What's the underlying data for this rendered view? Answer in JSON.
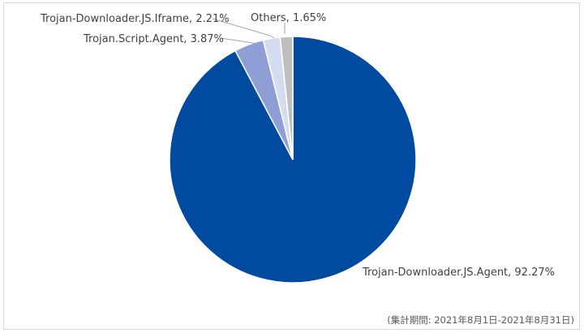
{
  "chart_data": {
    "type": "pie",
    "categories": [
      "Trojan-Downloader.JS.Agent",
      "Trojan.Script.Agent",
      "Trojan-Downloader.JS.Iframe",
      "Others"
    ],
    "values": [
      92.27,
      3.87,
      2.21,
      1.65
    ],
    "value_unit": "%",
    "colors": [
      "#004b9f",
      "#8e9fd6",
      "#d6dcf0",
      "#bfbfbf"
    ],
    "labels": [
      "Trojan-Downloader.JS.Agent, 92.27%",
      "Trojan.Script.Agent, 3.87%",
      "Trojan-Downloader.JS.Iframe, 2.21%",
      "Others, 1.65%"
    ],
    "legend": "none"
  },
  "footnote": "(集計期間: 2021年8月1日-2021年8月31日)"
}
